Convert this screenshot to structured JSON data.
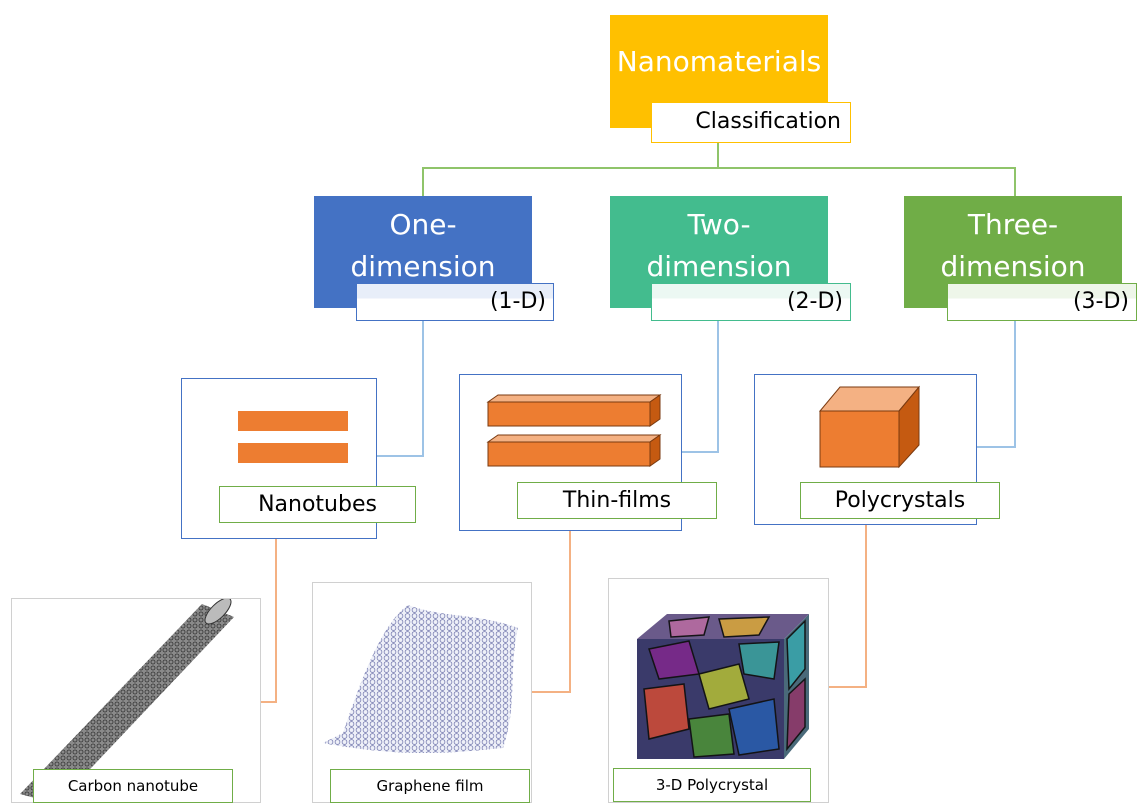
{
  "root": {
    "title": "Nanomaterials",
    "subtitle": "Classification"
  },
  "dimensions": [
    {
      "line1": "One-",
      "line2": "dimension",
      "tag": "(1-D)"
    },
    {
      "line1": "Two-",
      "line2": "dimension",
      "tag": "(2-D)"
    },
    {
      "line1": "Three-",
      "line2": "dimension",
      "tag": "(3-D)"
    }
  ],
  "examples": [
    {
      "label": "Nanotubes",
      "caption": "Carbon nanotube"
    },
    {
      "label": "Thin-films",
      "caption": "Graphene film"
    },
    {
      "label": "Polycrystals",
      "caption": "3-D Polycrystal"
    }
  ],
  "colors": {
    "root": "#ffc000",
    "one_d": "#4472c4",
    "two_d": "#43bc8e",
    "three_d": "#70ad47",
    "shape_fill": "#ed7d31",
    "connector_green": "#70ad47",
    "connector_blue": "#5b9bd5",
    "connector_orange": "#f4b183"
  }
}
